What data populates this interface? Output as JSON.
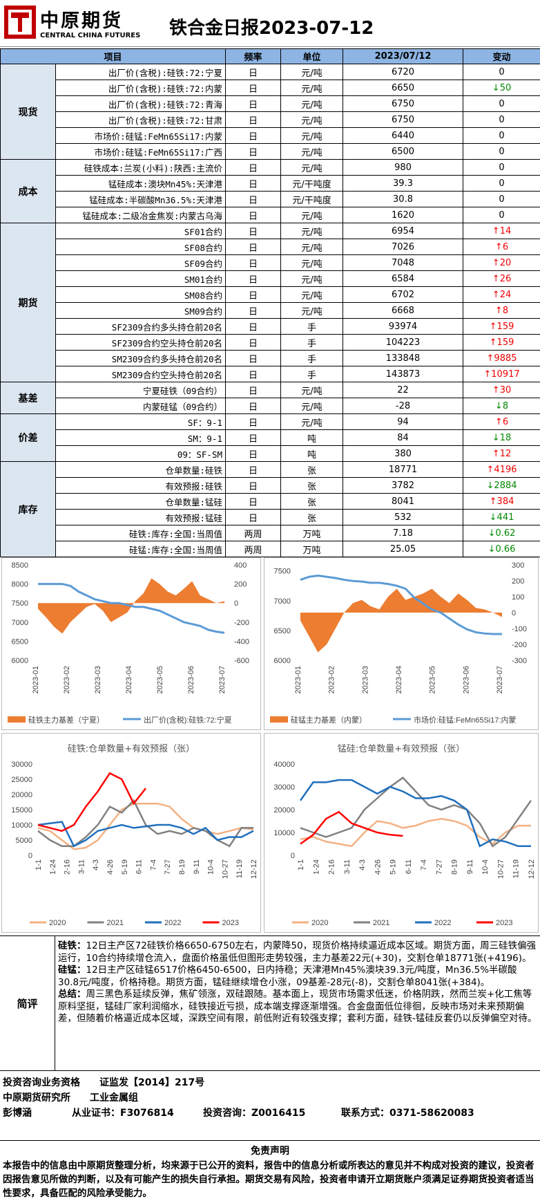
{
  "header": {
    "logo_cn": "中原期货",
    "logo_en": "CENTRAL CHINA FUTURES",
    "title": "铁合金日报2023-07-12"
  },
  "table": {
    "headers": [
      "项目",
      "频率",
      "单位",
      "2023/07/12",
      "变动"
    ],
    "groups": [
      {
        "category": "现货",
        "rows": [
          {
            "item": "出厂价(含税):硅铁:72:宁夏",
            "freq": "日",
            "unit": "元/吨",
            "value": "6720",
            "change": "0",
            "dir": "flat"
          },
          {
            "item": "出厂价(含税):硅铁:72:内蒙",
            "freq": "日",
            "unit": "元/吨",
            "value": "6650",
            "change": "50",
            "dir": "down"
          },
          {
            "item": "出厂价(含税):硅铁:72:青海",
            "freq": "日",
            "unit": "元/吨",
            "value": "6750",
            "change": "0",
            "dir": "flat"
          },
          {
            "item": "出厂价(含税):硅铁:72:甘肃",
            "freq": "日",
            "unit": "元/吨",
            "value": "6750",
            "change": "0",
            "dir": "flat"
          },
          {
            "item": "市场价:硅锰:FeMn65Si17:内蒙",
            "freq": "日",
            "unit": "元/吨",
            "value": "6440",
            "change": "0",
            "dir": "flat"
          },
          {
            "item": "市场价:硅锰:FeMn65Si17:广西",
            "freq": "日",
            "unit": "元/吨",
            "value": "6500",
            "change": "0",
            "dir": "flat"
          }
        ]
      },
      {
        "category": "成本",
        "rows": [
          {
            "item": "硅铁成本:兰炭(小料):陕西:主流价",
            "freq": "日",
            "unit": "元/吨",
            "value": "980",
            "change": "0",
            "dir": "flat"
          },
          {
            "item": "锰硅成本:澳块Mn45%:天津港",
            "freq": "日",
            "unit": "元/干吨度",
            "value": "39.3",
            "change": "0",
            "dir": "flat"
          },
          {
            "item": "锰硅成本:半碳酸Mn36.5%:天津港",
            "freq": "日",
            "unit": "元/干吨度",
            "value": "30.8",
            "change": "0",
            "dir": "flat"
          },
          {
            "item": "锰硅成本:二级冶金焦炭:内蒙古乌海",
            "freq": "日",
            "unit": "元/吨",
            "value": "1620",
            "change": "0",
            "dir": "flat"
          }
        ]
      },
      {
        "category": "期货",
        "rows": [
          {
            "item": "SF01合约",
            "freq": "日",
            "unit": "元/吨",
            "value": "6954",
            "change": "14",
            "dir": "up"
          },
          {
            "item": "SF08合约",
            "freq": "日",
            "unit": "元/吨",
            "value": "7026",
            "change": "6",
            "dir": "up"
          },
          {
            "item": "SF09合约",
            "freq": "日",
            "unit": "元/吨",
            "value": "7048",
            "change": "20",
            "dir": "up"
          },
          {
            "item": "SM01合约",
            "freq": "日",
            "unit": "元/吨",
            "value": "6584",
            "change": "26",
            "dir": "up"
          },
          {
            "item": "SM08合约",
            "freq": "日",
            "unit": "元/吨",
            "value": "6702",
            "change": "24",
            "dir": "up"
          },
          {
            "item": "SM09合约",
            "freq": "日",
            "unit": "元/吨",
            "value": "6668",
            "change": "8",
            "dir": "up"
          },
          {
            "item": "SF2309合约多头持仓前20名",
            "freq": "日",
            "unit": "手",
            "value": "93974",
            "change": "159",
            "dir": "up"
          },
          {
            "item": "SF2309合约空头持仓前20名",
            "freq": "日",
            "unit": "手",
            "value": "104223",
            "change": "159",
            "dir": "up"
          },
          {
            "item": "SM2309合约多头持仓前20名",
            "freq": "日",
            "unit": "手",
            "value": "133848",
            "change": "9885",
            "dir": "up"
          },
          {
            "item": "SM2309合约空头持仓前20名",
            "freq": "日",
            "unit": "手",
            "value": "143873",
            "change": "10917",
            "dir": "up"
          }
        ]
      },
      {
        "category": "基差",
        "rows": [
          {
            "item": "宁夏硅铁（09合约）",
            "freq": "日",
            "unit": "元/吨",
            "value": "22",
            "change": "30",
            "dir": "up"
          },
          {
            "item": "内蒙硅锰（09合约）",
            "freq": "日",
            "unit": "元/吨",
            "value": "-28",
            "change": "8",
            "dir": "down"
          }
        ]
      },
      {
        "category": "价差",
        "rows": [
          {
            "item": "SF：9-1",
            "freq": "日",
            "unit": "元/吨",
            "value": "94",
            "change": "6",
            "dir": "up"
          },
          {
            "item": "SM：9-1",
            "freq": "日",
            "unit": "吨",
            "value": "84",
            "change": "18",
            "dir": "down"
          },
          {
            "item": "09：SF-SM",
            "freq": "日",
            "unit": "吨",
            "value": "380",
            "change": "12",
            "dir": "up"
          }
        ]
      },
      {
        "category": "库存",
        "rows": [
          {
            "item": "仓单数量:硅铁",
            "freq": "日",
            "unit": "张",
            "value": "18771",
            "change": "4196",
            "dir": "up"
          },
          {
            "item": "有效预报:硅铁",
            "freq": "日",
            "unit": "张",
            "value": "3782",
            "change": "2884",
            "dir": "down"
          },
          {
            "item": "仓单数量:锰硅",
            "freq": "日",
            "unit": "张",
            "value": "8041",
            "change": "384",
            "dir": "up"
          },
          {
            "item": "有效预报:锰硅",
            "freq": "日",
            "unit": "张",
            "value": "532",
            "change": "441",
            "dir": "down"
          },
          {
            "item": "硅铁:库存:全国:当周值",
            "freq": "两周",
            "unit": "万吨",
            "value": "7.18",
            "change": "0.62",
            "dir": "down"
          },
          {
            "item": "硅锰:库存:全国:当周值",
            "freq": "两周",
            "unit": "万吨",
            "value": "25.05",
            "change": "0.66",
            "dir": "down"
          }
        ]
      }
    ]
  },
  "chart_data": [
    {
      "type": "line",
      "left_axis_ticks": [
        "8500",
        "8000",
        "7500",
        "7000",
        "6500",
        "6000"
      ],
      "right_axis_ticks": [
        "400",
        "200",
        "0",
        "-200",
        "-400",
        "-600"
      ],
      "x_ticks": [
        "2023-01",
        "2023-02",
        "2023-03",
        "2023-04",
        "2023-05",
        "2023-06",
        "2023-07"
      ],
      "ylim_left": [
        6000,
        8500
      ],
      "ylim_right": [
        -600,
        400
      ],
      "series": [
        {
          "name": "硅铁主力基差（宁夏）",
          "kind": "area",
          "axis": "right",
          "color": "#ed7d31",
          "values": [
            -60,
            -150,
            -250,
            -320,
            -200,
            -120,
            -40,
            -10,
            -80,
            -200,
            -150,
            -100,
            20,
            100,
            260,
            200,
            120,
            80,
            150,
            230,
            80,
            40,
            0,
            20
          ]
        },
        {
          "name": "出厂价(含税):硅铁:72:宁夏",
          "kind": "line",
          "axis": "left",
          "color": "#5b9bd5",
          "values": [
            8000,
            8000,
            8000,
            8000,
            7950,
            7800,
            7700,
            7600,
            7550,
            7500,
            7500,
            7450,
            7400,
            7400,
            7350,
            7300,
            7200,
            7100,
            7000,
            6950,
            6900,
            6800,
            6750,
            6720
          ]
        }
      ]
    },
    {
      "type": "line",
      "left_axis_ticks": [
        "7500",
        "7000",
        "6500",
        "6000"
      ],
      "right_axis_ticks": [
        "300",
        "200",
        "100",
        "0",
        "-100",
        "-200",
        "-300"
      ],
      "x_ticks": [
        "2023-01",
        "2023-02",
        "2023-03",
        "2023-04",
        "2023-05",
        "2023-06",
        "2023-07"
      ],
      "ylim_left": [
        6000,
        7600
      ],
      "ylim_right": [
        -300,
        300
      ],
      "series": [
        {
          "name": "硅锰主力基差（内蒙）",
          "kind": "area",
          "axis": "right",
          "color": "#ed7d31",
          "values": [
            -50,
            -150,
            -250,
            -200,
            -100,
            0,
            60,
            80,
            40,
            20,
            100,
            150,
            80,
            100,
            120,
            150,
            100,
            60,
            120,
            80,
            30,
            20,
            0,
            -28
          ]
        },
        {
          "name": "市场价:硅锰:FeMn65Si17:内蒙",
          "kind": "line",
          "axis": "left",
          "color": "#5b9bd5",
          "values": [
            7350,
            7400,
            7420,
            7400,
            7380,
            7350,
            7330,
            7320,
            7300,
            7300,
            7280,
            7250,
            7200,
            7050,
            6950,
            6850,
            6800,
            6700,
            6600,
            6520,
            6470,
            6450,
            6440,
            6440
          ]
        }
      ]
    },
    {
      "type": "line",
      "title": "硅铁:仓单数量+有效预报（张）",
      "yticks": [
        "30000",
        "25000",
        "20000",
        "15000",
        "10000",
        "5000",
        "0"
      ],
      "ylim": [
        0,
        30000
      ],
      "x_ticks": [
        "1-1",
        "1-24",
        "2-16",
        "3-11",
        "4-3",
        "4-26",
        "5-19",
        "6-11",
        "7-4",
        "7-27",
        "8-19",
        "9-11",
        "10-4",
        "10-27",
        "11-19",
        "12-12"
      ],
      "series": [
        {
          "name": "2020",
          "color": "#f4b183",
          "values": [
            9000,
            8000,
            5000,
            2000,
            2500,
            5000,
            10000,
            15000,
            17000,
            17000,
            17000,
            16000,
            12000,
            9000,
            8000,
            7000,
            8000,
            9000,
            8500
          ]
        },
        {
          "name": "2021",
          "color": "#808080",
          "values": [
            8000,
            5000,
            3000,
            3000,
            6000,
            10000,
            16000,
            14000,
            18000,
            10000,
            7000,
            8000,
            7000,
            9000,
            8000,
            5000,
            3000,
            9000,
            9000
          ]
        },
        {
          "name": "2022",
          "color": "#1f6fbd",
          "values": [
            10000,
            10500,
            11000,
            3000,
            5000,
            8000,
            9000,
            10000,
            9000,
            9500,
            10000,
            10000,
            9000,
            7000,
            9000,
            5000,
            6000,
            6000,
            8000
          ]
        },
        {
          "name": "2023",
          "color": "#ff0000",
          "values": [
            10000,
            9000,
            8000,
            10000,
            16000,
            21000,
            27000,
            25000,
            17000,
            22000
          ]
        }
      ]
    },
    {
      "type": "line",
      "title": "锰硅:仓单数量+有效预报（张）",
      "yticks": [
        "40000",
        "30000",
        "20000",
        "10000",
        "0"
      ],
      "ylim": [
        0,
        40000
      ],
      "x_ticks": [
        "1-1",
        "1-24",
        "2-16",
        "3-11",
        "4-3",
        "4-26",
        "5-19",
        "6-11",
        "7-4",
        "7-27",
        "8-19",
        "9-11",
        "10-4",
        "10-27",
        "11-19",
        "12-12"
      ],
      "series": [
        {
          "name": "2020",
          "color": "#f4b183",
          "values": [
            7000,
            8000,
            6000,
            5000,
            4000,
            10000,
            15000,
            14000,
            12000,
            13000,
            15000,
            16000,
            15000,
            13000,
            8000,
            5000,
            10000,
            13000,
            13000
          ]
        },
        {
          "name": "2021",
          "color": "#808080",
          "values": [
            12000,
            10000,
            8000,
            10000,
            12000,
            20000,
            25000,
            30000,
            34000,
            28000,
            22000,
            20000,
            22000,
            20000,
            14000,
            4000,
            8000,
            16000,
            24000
          ]
        },
        {
          "name": "2022",
          "color": "#1f6fbd",
          "values": [
            24000,
            32000,
            32000,
            33000,
            33000,
            30000,
            27000,
            30000,
            28000,
            25000,
            25000,
            26000,
            24000,
            20000,
            4000,
            7000,
            6000,
            4000,
            4000
          ]
        },
        {
          "name": "2023",
          "color": "#ff0000",
          "values": [
            5000,
            9000,
            16000,
            19000,
            14000,
            12000,
            10000,
            9000,
            8500
          ]
        }
      ]
    }
  ],
  "comment": {
    "label": "简评",
    "sf_label": "硅铁：",
    "sf_text": "12日主产区72硅铁价格6650-6750左右，内蒙降50，现货价格持续逼近成本区域。期货方面，周三硅铁偏强运行，10合约持续增仓流入，盘面价格虽低但图形走势较强，主力基差22元(+30)，交割仓单18771张(+4196)。",
    "sm_label": "硅锰：",
    "sm_text": "12日主产区硅锰6517价格6450-6500，日内持稳；天津港Mn45%澳块39.3元/吨度，Mn36.5%半碳酸30.8元/吨度，价格持稳。期货方面，锰硅继续增仓小涨，09基差-28元(-8)，交割仓单8041张(+384)。",
    "sum_label": "总结：",
    "sum_text": "周三黑色系延续反弹，焦矿领涨，双硅跟随。基本面上，现货市场需求低迷，价格阴跌，然而兰炭+化工焦等原料坚挺，锰硅厂家利润缩水，硅铁接近亏损，成本端支撑逐渐增强。合金盘面低位徘徊，反映市场对未来预期偏差，但随着价格逼近成本区域，深跌空间有限，前低附近有较强支撑；套利方面，硅铁-锰硅反套仍以反弹偏空对待。"
  },
  "qualification": {
    "line1": "投资咨询业务资格　　证监发【2014】217号",
    "line2": "中原期货研究所　　工业金属组",
    "name": "彭博涵",
    "cert": "从业证书：F3076814",
    "advisory": "投资咨询：Z0016415",
    "contact": "联系方式：0371-58620083"
  },
  "disclaimer": {
    "title": "免责声明",
    "text": "本报告中的信息由中原期货整理分析，均来源于已公开的资料，报告中的信息分析或所表达的意见并不构成对投资的建议，投资者因报告意见所做的判断，以及有可能产生的损失自行承担。期货交易有风险，投资者申请开立期货账户须满足证券期货投资者适当性要求，具备匹配的风险承受能力。"
  },
  "colors": {
    "header_bg": "#8db4e2",
    "category_bg": "#dce6f1",
    "up": "#e00000",
    "down": "#008000"
  }
}
